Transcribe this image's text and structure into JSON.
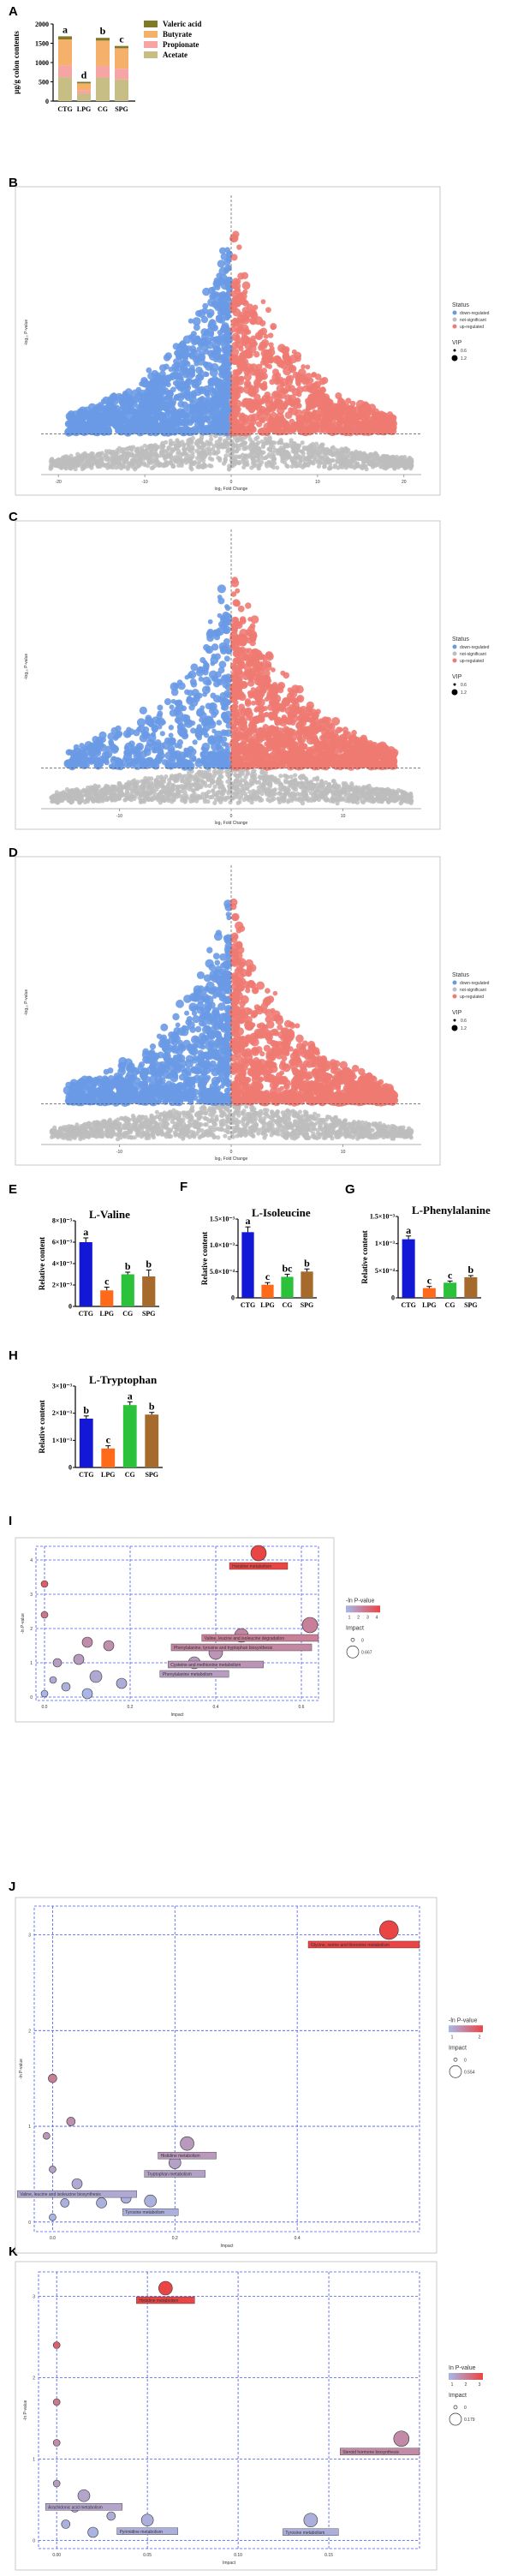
{
  "colors": {
    "down": "#6A9AE6",
    "nosig": "#BDBDBD",
    "up": "#EE7A72",
    "valeric": "#7E7A2A",
    "butyrate": "#F5B06B",
    "propionate": "#F7A4A4",
    "acetate": "#C7BE86",
    "bar_blue": "#1218D6",
    "bar_orange": "#FF6A1A",
    "bar_green": "#2CC13A",
    "bar_brown": "#A66A2C",
    "grid": "#4A5AF0",
    "path_low": "#A7B8E8",
    "path_high": "#E94545"
  },
  "panel_labels": [
    "A",
    "B",
    "C",
    "D",
    "E",
    "F",
    "G",
    "H",
    "I",
    "J",
    "K"
  ],
  "chart_data": [
    {
      "id": "A",
      "type": "bar",
      "stacked": true,
      "categories": [
        "CTG",
        "LPG",
        "CG",
        "SPG"
      ],
      "ylabel": "µg/g colon contents",
      "yticks": [
        "0",
        "500",
        "1000",
        "1500",
        "2000"
      ],
      "ylim": [
        0,
        2000
      ],
      "series": [
        {
          "name": "Acetate",
          "values": [
            620,
            190,
            610,
            560
          ]
        },
        {
          "name": "Propionate",
          "values": [
            300,
            90,
            300,
            280
          ]
        },
        {
          "name": "Butyrate",
          "values": [
            680,
            180,
            660,
            530
          ]
        },
        {
          "name": "Valeric acid",
          "values": [
            80,
            40,
            70,
            60
          ]
        }
      ],
      "letters": [
        "a",
        "d",
        "b",
        "c"
      ],
      "legend": [
        "Valeric acid",
        "Butyrate",
        "Propionate",
        "Acetate"
      ]
    },
    {
      "id": "B",
      "type": "scatter",
      "kind": "volcano",
      "xlabel": "log₂ Fold Change",
      "ylabel": "-log₁₀ P-value",
      "xticks": [
        "-20",
        "-10",
        "0",
        "10",
        "20"
      ],
      "xlim": [
        -22,
        22
      ],
      "ylim": [
        0,
        10
      ],
      "legend_title": "Status",
      "legend_items": [
        "down-regulated",
        "not-significant",
        "up-regulated"
      ],
      "vip_title": "VIP",
      "vip_items": [
        "0.6",
        "1.2"
      ],
      "seed": 11,
      "down_scale": 1.0,
      "up_scale": 0.7
    },
    {
      "id": "C",
      "type": "scatter",
      "kind": "volcano",
      "xlabel": "log₂ Fold Change",
      "ylabel": "-log₁₀ P-value",
      "xticks": [
        "-10",
        "0",
        "10"
      ],
      "xlim": [
        -17,
        17
      ],
      "ylim": [
        0,
        10
      ],
      "legend_title": "Status",
      "legend_items": [
        "down-regulated",
        "not-significant",
        "up-regulated"
      ],
      "vip_title": "VIP",
      "vip_items": [
        "0.6",
        "1.2"
      ],
      "seed": 23,
      "down_scale": 0.45,
      "up_scale": 1.0
    },
    {
      "id": "D",
      "type": "scatter",
      "kind": "volcano",
      "xlabel": "log₂ Fold Change",
      "ylabel": "-log₁₀ P-value",
      "xticks": [
        "-10",
        "0",
        "10"
      ],
      "xlim": [
        -17,
        17
      ],
      "ylim": [
        0,
        10
      ],
      "legend_title": "Status",
      "legend_items": [
        "down-regulated",
        "not-significant",
        "up-regulated"
      ],
      "vip_title": "VIP",
      "vip_items": [
        "0.6",
        "1.2"
      ],
      "seed": 37,
      "down_scale": 0.8,
      "up_scale": 0.8
    },
    {
      "id": "E",
      "type": "bar",
      "title": "L-Valine",
      "ylabel": "Relative content",
      "categories": [
        "CTG",
        "LPG",
        "CG",
        "SPG"
      ],
      "values": [
        6.0,
        1.5,
        3.0,
        2.8
      ],
      "errors": [
        0.4,
        0.3,
        0.2,
        0.6
      ],
      "letters": [
        "a",
        "c",
        "b",
        "b"
      ],
      "yticks": [
        "0",
        "2×10⁻³",
        "4×10⁻³",
        "6×10⁻³",
        "8×10⁻³"
      ],
      "ylim": [
        0,
        8
      ]
    },
    {
      "id": "F",
      "type": "bar",
      "title": "L-Isoleucine",
      "ylabel": "Relative content",
      "categories": [
        "CTG",
        "LPG",
        "CG",
        "SPG"
      ],
      "values": [
        1.25,
        0.25,
        0.4,
        0.5
      ],
      "errors": [
        0.1,
        0.04,
        0.05,
        0.05
      ],
      "letters": [
        "a",
        "c",
        "bc",
        "b"
      ],
      "yticks": [
        "0",
        "5.0×10⁻⁴",
        "1.0×10⁻³",
        "1.5×10⁻³"
      ],
      "ylim": [
        0,
        1.5
      ]
    },
    {
      "id": "G",
      "type": "bar",
      "title": "L-Phenylalanine",
      "ylabel": "Relative content",
      "categories": [
        "CTG",
        "LPG",
        "CG",
        "SPG"
      ],
      "values": [
        1.08,
        0.18,
        0.28,
        0.38
      ],
      "errors": [
        0.06,
        0.03,
        0.03,
        0.03
      ],
      "letters": [
        "a",
        "c",
        "c",
        "b"
      ],
      "yticks": [
        "0",
        "5×10⁻⁴",
        "1×10⁻³",
        "1.5×10⁻³"
      ],
      "ylim": [
        0,
        1.5
      ]
    },
    {
      "id": "H",
      "type": "bar",
      "title": "L-Tryptophan",
      "ylabel": "Relative content",
      "categories": [
        "CTG",
        "LPG",
        "CG",
        "SPG"
      ],
      "values": [
        1.8,
        0.7,
        2.3,
        1.95
      ],
      "errors": [
        0.1,
        0.1,
        0.12,
        0.08
      ],
      "letters": [
        "b",
        "c",
        "a",
        "b"
      ],
      "yticks": [
        "0",
        "1×10⁻³",
        "2×10⁻³",
        "3×10⁻³"
      ],
      "ylim": [
        0,
        3
      ]
    },
    {
      "id": "I",
      "type": "scatter",
      "kind": "pathway",
      "xlabel": "Impact",
      "ylabel": "-ln P-value",
      "xticks": [
        "0.0",
        "0.2",
        "0.4",
        "0.6"
      ],
      "xlim": [
        -0.02,
        0.64
      ],
      "yticks": [
        "0",
        "1",
        "2",
        "3",
        "4"
      ],
      "ylim": [
        -0.1,
        4.4
      ],
      "legend_title": "-ln P-value",
      "legend_ticks": [
        "1",
        "2",
        "3",
        "4"
      ],
      "size_title": "Impact",
      "size_items": [
        "0",
        "0.667"
      ],
      "points": [
        {
          "x": 0.5,
          "y": 4.2,
          "v": 4.2,
          "r": 9,
          "label": "Histidine metabolism"
        },
        {
          "x": 0.62,
          "y": 2.1,
          "v": 2.1,
          "r": 9,
          "label": "Valine, leucine and isoleucine degradation"
        },
        {
          "x": 0.46,
          "y": 1.8,
          "v": 1.8,
          "r": 8,
          "label": "Phenylalanine, tyrosine and tryptophan biosynthesis"
        },
        {
          "x": 0.4,
          "y": 1.3,
          "v": 1.3,
          "r": 8,
          "label": "Cysteine and methionine metabolism"
        },
        {
          "x": 0.35,
          "y": 1.0,
          "v": 1.0,
          "r": 7,
          "label": "Phenylalanine metabolism"
        },
        {
          "x": 0.0,
          "y": 3.3,
          "v": 3.3,
          "r": 4
        },
        {
          "x": 0.0,
          "y": 2.4,
          "v": 2.4,
          "r": 4
        },
        {
          "x": 0.1,
          "y": 1.6,
          "v": 1.6,
          "r": 6
        },
        {
          "x": 0.15,
          "y": 1.5,
          "v": 1.5,
          "r": 6
        },
        {
          "x": 0.08,
          "y": 1.1,
          "v": 1.1,
          "r": 6
        },
        {
          "x": 0.03,
          "y": 1.0,
          "v": 1.0,
          "r": 5
        },
        {
          "x": 0.12,
          "y": 0.6,
          "v": 0.6,
          "r": 7
        },
        {
          "x": 0.18,
          "y": 0.4,
          "v": 0.4,
          "r": 6
        },
        {
          "x": 0.02,
          "y": 0.5,
          "v": 0.5,
          "r": 4
        },
        {
          "x": 0.05,
          "y": 0.3,
          "v": 0.3,
          "r": 5
        },
        {
          "x": 0.1,
          "y": 0.1,
          "v": 0.1,
          "r": 6
        },
        {
          "x": 0.0,
          "y": 0.1,
          "v": 0.1,
          "r": 4
        }
      ]
    },
    {
      "id": "J",
      "type": "scatter",
      "kind": "pathway",
      "xlabel": "Impact",
      "ylabel": "-ln P-value",
      "xticks": [
        "0.0",
        "0.2",
        "0.4"
      ],
      "xlim": [
        -0.03,
        0.6
      ],
      "yticks": [
        "0",
        "1",
        "2",
        "3"
      ],
      "ylim": [
        -0.1,
        3.3
      ],
      "legend_title": "-ln P-value",
      "legend_ticks": [
        "1",
        "2"
      ],
      "size_title": "Impact",
      "size_items": [
        "0",
        "0.554"
      ],
      "points": [
        {
          "x": 0.55,
          "y": 3.05,
          "v": 3.05,
          "r": 11,
          "label": "Glycine, serine and threonine metabolism"
        },
        {
          "x": 0.22,
          "y": 0.82,
          "v": 0.82,
          "r": 8,
          "label": "Histidine metabolism"
        },
        {
          "x": 0.2,
          "y": 0.62,
          "v": 0.62,
          "r": 7,
          "label": "Tryptophan metabolism"
        },
        {
          "x": 0.04,
          "y": 0.4,
          "v": 0.4,
          "r": 6,
          "label": "Valine, leucine and isoleucine biosynthesis"
        },
        {
          "x": 0.16,
          "y": 0.22,
          "v": 0.22,
          "r": 7,
          "label": "Tyrosine metabolism"
        },
        {
          "x": 0.0,
          "y": 1.5,
          "v": 1.5,
          "r": 5
        },
        {
          "x": 0.03,
          "y": 1.05,
          "v": 1.05,
          "r": 5
        },
        {
          "x": -0.01,
          "y": 0.9,
          "v": 0.9,
          "r": 4
        },
        {
          "x": 0.0,
          "y": 0.55,
          "v": 0.55,
          "r": 4
        },
        {
          "x": 0.02,
          "y": 0.2,
          "v": 0.2,
          "r": 5
        },
        {
          "x": 0.08,
          "y": 0.2,
          "v": 0.2,
          "r": 6
        },
        {
          "x": 0.12,
          "y": 0.25,
          "v": 0.25,
          "r": 6
        },
        {
          "x": 0.0,
          "y": 0.05,
          "v": 0.05,
          "r": 4
        }
      ]
    },
    {
      "id": "K",
      "type": "scatter",
      "kind": "pathway",
      "xlabel": "Impact",
      "ylabel": "-ln P-value",
      "xticks": [
        "0.00",
        "0.05",
        "0.10",
        "0.15"
      ],
      "xlim": [
        -0.01,
        0.2
      ],
      "yticks": [
        "0",
        "1",
        "2",
        "3"
      ],
      "ylim": [
        -0.1,
        3.3
      ],
      "legend_title": "In P-value",
      "legend_ticks": [
        "1",
        "2",
        "3"
      ],
      "size_title": "Impact",
      "size_items": [
        "0",
        "0.179"
      ],
      "points": [
        {
          "x": 0.06,
          "y": 3.1,
          "v": 3.1,
          "r": 8,
          "label": "Histidine metabolism"
        },
        {
          "x": 0.19,
          "y": 1.25,
          "v": 1.25,
          "r": 9,
          "label": "Steroid hormone biosynthesis"
        },
        {
          "x": 0.015,
          "y": 0.55,
          "v": 0.55,
          "r": 7,
          "label": "Arachidonic acid metabolism"
        },
        {
          "x": 0.05,
          "y": 0.25,
          "v": 0.25,
          "r": 7,
          "label": "Pyrimidine metabolism"
        },
        {
          "x": 0.14,
          "y": 0.25,
          "v": 0.25,
          "r": 8,
          "label": "Tyrosine metabolism"
        },
        {
          "x": 0.0,
          "y": 2.4,
          "v": 2.4,
          "r": 4
        },
        {
          "x": 0.0,
          "y": 1.7,
          "v": 1.7,
          "r": 4
        },
        {
          "x": 0.0,
          "y": 1.2,
          "v": 1.2,
          "r": 4
        },
        {
          "x": 0.0,
          "y": 0.7,
          "v": 0.7,
          "r": 4
        },
        {
          "x": 0.01,
          "y": 0.4,
          "v": 0.4,
          "r": 5
        },
        {
          "x": 0.005,
          "y": 0.2,
          "v": 0.2,
          "r": 5
        },
        {
          "x": 0.02,
          "y": 0.1,
          "v": 0.1,
          "r": 6
        },
        {
          "x": 0.03,
          "y": 0.3,
          "v": 0.3,
          "r": 5
        }
      ]
    }
  ]
}
